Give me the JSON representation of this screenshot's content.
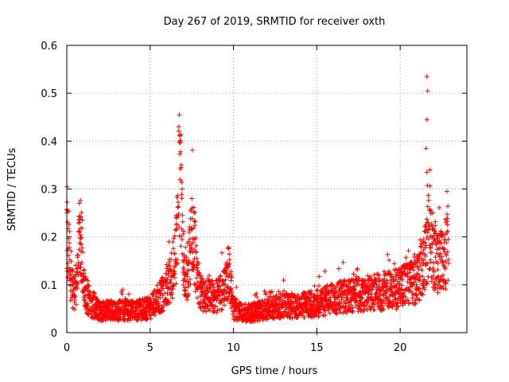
{
  "chart_data": {
    "type": "scatter",
    "title": "Day 267 of 2019, SRMTID for receiver oxth",
    "xlabel": "GPS time / hours",
    "ylabel": "SRMTID / TECUs",
    "xlim": [
      0,
      24
    ],
    "ylim": [
      0,
      0.6
    ],
    "xticks": [
      0,
      5,
      10,
      15,
      20
    ],
    "xtick_labels": [
      "0",
      "5",
      "10",
      "15",
      "20"
    ],
    "yticks": [
      0,
      0.1,
      0.2,
      0.3,
      0.4,
      0.5,
      0.6
    ],
    "ytick_labels": [
      "0",
      "0.1",
      "0.2",
      "0.3",
      "0.4",
      "0.5",
      "0.6"
    ],
    "grid": true,
    "marker": "+",
    "colors": {
      "series": "#ff0000",
      "grid": "#a0a0a0",
      "axis": "#000000"
    },
    "baseline": {
      "x": [
        0.0,
        0.1,
        0.2,
        0.3,
        0.4,
        0.5,
        0.6,
        0.7,
        0.8,
        0.9,
        1.0,
        1.2,
        1.5,
        2.0,
        3.0,
        4.0,
        5.0,
        5.5,
        6.0,
        6.3,
        6.6,
        6.7,
        6.8,
        6.9,
        7.0,
        7.2,
        7.4,
        7.6,
        7.8,
        8.0,
        9.0,
        9.5,
        9.7,
        9.8,
        10.0,
        10.5,
        11.0,
        12.0,
        13.0,
        14.0,
        15.0,
        16.0,
        17.0,
        18.0,
        19.0,
        20.0,
        20.5,
        21.0,
        21.3,
        21.5,
        21.7,
        21.8,
        21.9,
        22.0,
        22.2,
        22.5,
        22.8,
        22.9
      ],
      "y": [
        0.22,
        0.17,
        0.13,
        0.1,
        0.08,
        0.08,
        0.1,
        0.15,
        0.2,
        0.16,
        0.1,
        0.07,
        0.055,
        0.045,
        0.045,
        0.045,
        0.05,
        0.07,
        0.09,
        0.12,
        0.18,
        0.3,
        0.32,
        0.22,
        0.15,
        0.12,
        0.16,
        0.2,
        0.12,
        0.08,
        0.075,
        0.09,
        0.13,
        0.1,
        0.05,
        0.04,
        0.04,
        0.05,
        0.055,
        0.055,
        0.06,
        0.07,
        0.075,
        0.08,
        0.085,
        0.09,
        0.1,
        0.11,
        0.13,
        0.15,
        0.2,
        0.24,
        0.18,
        0.16,
        0.15,
        0.14,
        0.17,
        0.2
      ]
    },
    "peaks": [
      {
        "x": 6.75,
        "y": 0.455
      },
      {
        "x": 6.72,
        "y": 0.43
      },
      {
        "x": 6.8,
        "y": 0.4
      },
      {
        "x": 6.85,
        "y": 0.345
      },
      {
        "x": 7.5,
        "y": 0.28
      },
      {
        "x": 21.6,
        "y": 0.535
      },
      {
        "x": 21.65,
        "y": 0.505
      },
      {
        "x": 21.6,
        "y": 0.445
      },
      {
        "x": 21.55,
        "y": 0.385
      },
      {
        "x": 21.6,
        "y": 0.335
      },
      {
        "x": 22.8,
        "y": 0.295
      },
      {
        "x": 0.0,
        "y": 0.25
      },
      {
        "x": 0.75,
        "y": 0.27
      },
      {
        "x": 15.0,
        "y": 0.0
      }
    ]
  }
}
